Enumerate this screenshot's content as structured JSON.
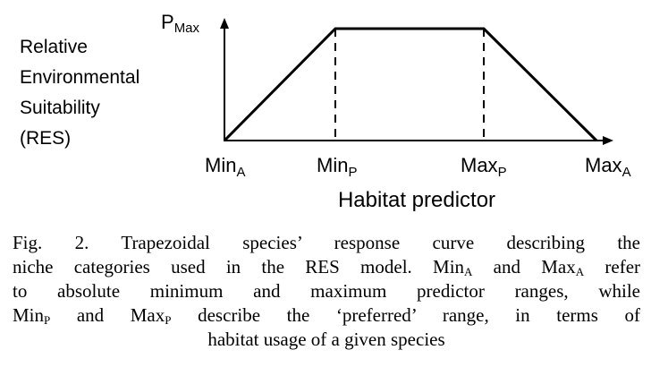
{
  "diagram": {
    "y_axis_top_label": {
      "main": "P",
      "sub": "Max"
    },
    "y_axis_title_lines": [
      "Relative",
      "Environmental",
      "Suitability",
      "(RES)"
    ],
    "x_tick_labels": [
      {
        "main": "Min",
        "sub": "A"
      },
      {
        "main": "Min",
        "sub": "P"
      },
      {
        "main": "Max",
        "sub": "P"
      },
      {
        "main": "Max",
        "sub": "A"
      }
    ],
    "x_axis_title": "Habitat predictor"
  },
  "caption": {
    "line1": "Fig. 2. Trapezoidal species’ response curve describing the",
    "line2_a": "niche categories used in the RES model. Min",
    "line2_sub_a": "A",
    "line2_b": " and Max",
    "line2_sub_b": "A",
    "line2_c": " refer",
    "line3": "to absolute minimum and maximum predictor ranges, while",
    "line4_a": "Min",
    "line4_sub_a": "P",
    "line4_b": " and Max",
    "line4_sub_b": "P",
    "line4_c": " describe the ‘preferred’ range, in terms of",
    "line5": "habitat usage of a given species"
  }
}
